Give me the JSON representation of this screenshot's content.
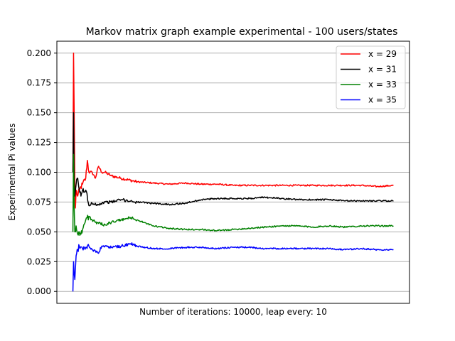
{
  "chart_data": {
    "type": "line",
    "title": "Markov matrix graph example experimental - 100 users/states",
    "xlabel": "Number of iterations: 10000, leap every: 10",
    "ylabel": "Experimental Pi values",
    "ylim": [
      -0.01,
      0.21
    ],
    "y_ticks": [
      0.0,
      0.025,
      0.05,
      0.075,
      0.1,
      0.125,
      0.15,
      0.175,
      0.2
    ],
    "y_tick_labels": [
      "0.000",
      "0.025",
      "0.050",
      "0.075",
      "0.100",
      "0.125",
      "0.150",
      "0.175",
      "0.200"
    ],
    "xlim": [
      -50,
      1050
    ],
    "x_ticks_shown": false,
    "grid": "y",
    "legend_position": "top-right",
    "series": [
      {
        "name": "x = 29",
        "color": "#ff0000",
        "points": [
          [
            0,
            0.1
          ],
          [
            2,
            0.2
          ],
          [
            4,
            0.15
          ],
          [
            6,
            0.09
          ],
          [
            8,
            0.07
          ],
          [
            10,
            0.085
          ],
          [
            15,
            0.08
          ],
          [
            20,
            0.085
          ],
          [
            30,
            0.09
          ],
          [
            40,
            0.095
          ],
          [
            45,
            0.11
          ],
          [
            50,
            0.1
          ],
          [
            60,
            0.1
          ],
          [
            70,
            0.095
          ],
          [
            80,
            0.105
          ],
          [
            90,
            0.1
          ],
          [
            100,
            0.1
          ],
          [
            120,
            0.097
          ],
          [
            150,
            0.095
          ],
          [
            200,
            0.092
          ],
          [
            250,
            0.091
          ],
          [
            300,
            0.09
          ],
          [
            350,
            0.091
          ],
          [
            400,
            0.09
          ],
          [
            450,
            0.09
          ],
          [
            500,
            0.089
          ],
          [
            550,
            0.089
          ],
          [
            600,
            0.089
          ],
          [
            650,
            0.089
          ],
          [
            700,
            0.089
          ],
          [
            750,
            0.089
          ],
          [
            800,
            0.089
          ],
          [
            850,
            0.089
          ],
          [
            900,
            0.089
          ],
          [
            950,
            0.088
          ],
          [
            1000,
            0.089
          ]
        ]
      },
      {
        "name": "x = 31",
        "color": "#000000",
        "points": [
          [
            0,
            0.1
          ],
          [
            2,
            0.15
          ],
          [
            4,
            0.09
          ],
          [
            6,
            0.08
          ],
          [
            8,
            0.085
          ],
          [
            10,
            0.09
          ],
          [
            15,
            0.095
          ],
          [
            20,
            0.085
          ],
          [
            25,
            0.08
          ],
          [
            30,
            0.085
          ],
          [
            40,
            0.085
          ],
          [
            50,
            0.072
          ],
          [
            60,
            0.074
          ],
          [
            80,
            0.073
          ],
          [
            100,
            0.075
          ],
          [
            120,
            0.075
          ],
          [
            150,
            0.077
          ],
          [
            200,
            0.075
          ],
          [
            250,
            0.074
          ],
          [
            300,
            0.073
          ],
          [
            350,
            0.074
          ],
          [
            400,
            0.077
          ],
          [
            450,
            0.078
          ],
          [
            500,
            0.078
          ],
          [
            550,
            0.078
          ],
          [
            600,
            0.079
          ],
          [
            650,
            0.078
          ],
          [
            700,
            0.077
          ],
          [
            750,
            0.077
          ],
          [
            800,
            0.077
          ],
          [
            850,
            0.076
          ],
          [
            900,
            0.076
          ],
          [
            950,
            0.076
          ],
          [
            1000,
            0.076
          ]
        ]
      },
      {
        "name": "x = 33",
        "color": "#008000",
        "points": [
          [
            0,
            0.05
          ],
          [
            2,
            0.115
          ],
          [
            4,
            0.07
          ],
          [
            6,
            0.05
          ],
          [
            8,
            0.05
          ],
          [
            10,
            0.055
          ],
          [
            15,
            0.048
          ],
          [
            20,
            0.05
          ],
          [
            25,
            0.048
          ],
          [
            30,
            0.052
          ],
          [
            40,
            0.06
          ],
          [
            50,
            0.063
          ],
          [
            60,
            0.06
          ],
          [
            70,
            0.058
          ],
          [
            80,
            0.057
          ],
          [
            100,
            0.056
          ],
          [
            120,
            0.058
          ],
          [
            150,
            0.06
          ],
          [
            180,
            0.062
          ],
          [
            200,
            0.06
          ],
          [
            250,
            0.055
          ],
          [
            300,
            0.053
          ],
          [
            350,
            0.052
          ],
          [
            400,
            0.052
          ],
          [
            450,
            0.051
          ],
          [
            500,
            0.052
          ],
          [
            550,
            0.053
          ],
          [
            600,
            0.054
          ],
          [
            650,
            0.055
          ],
          [
            700,
            0.055
          ],
          [
            750,
            0.054
          ],
          [
            800,
            0.055
          ],
          [
            850,
            0.054
          ],
          [
            900,
            0.055
          ],
          [
            950,
            0.055
          ],
          [
            1000,
            0.055
          ]
        ]
      },
      {
        "name": "x = 35",
        "color": "#0000ff",
        "points": [
          [
            0,
            0.0
          ],
          [
            2,
            0.025
          ],
          [
            4,
            0.015
          ],
          [
            6,
            0.01
          ],
          [
            8,
            0.02
          ],
          [
            10,
            0.03
          ],
          [
            15,
            0.035
          ],
          [
            20,
            0.038
          ],
          [
            30,
            0.036
          ],
          [
            40,
            0.037
          ],
          [
            50,
            0.038
          ],
          [
            60,
            0.035
          ],
          [
            70,
            0.034
          ],
          [
            80,
            0.032
          ],
          [
            90,
            0.038
          ],
          [
            100,
            0.038
          ],
          [
            120,
            0.037
          ],
          [
            150,
            0.038
          ],
          [
            180,
            0.04
          ],
          [
            200,
            0.038
          ],
          [
            250,
            0.036
          ],
          [
            300,
            0.036
          ],
          [
            350,
            0.037
          ],
          [
            400,
            0.037
          ],
          [
            450,
            0.036
          ],
          [
            500,
            0.037
          ],
          [
            550,
            0.037
          ],
          [
            600,
            0.036
          ],
          [
            650,
            0.036
          ],
          [
            700,
            0.036
          ],
          [
            750,
            0.036
          ],
          [
            800,
            0.036
          ],
          [
            850,
            0.035
          ],
          [
            900,
            0.036
          ],
          [
            950,
            0.035
          ],
          [
            1000,
            0.035
          ]
        ]
      }
    ]
  }
}
